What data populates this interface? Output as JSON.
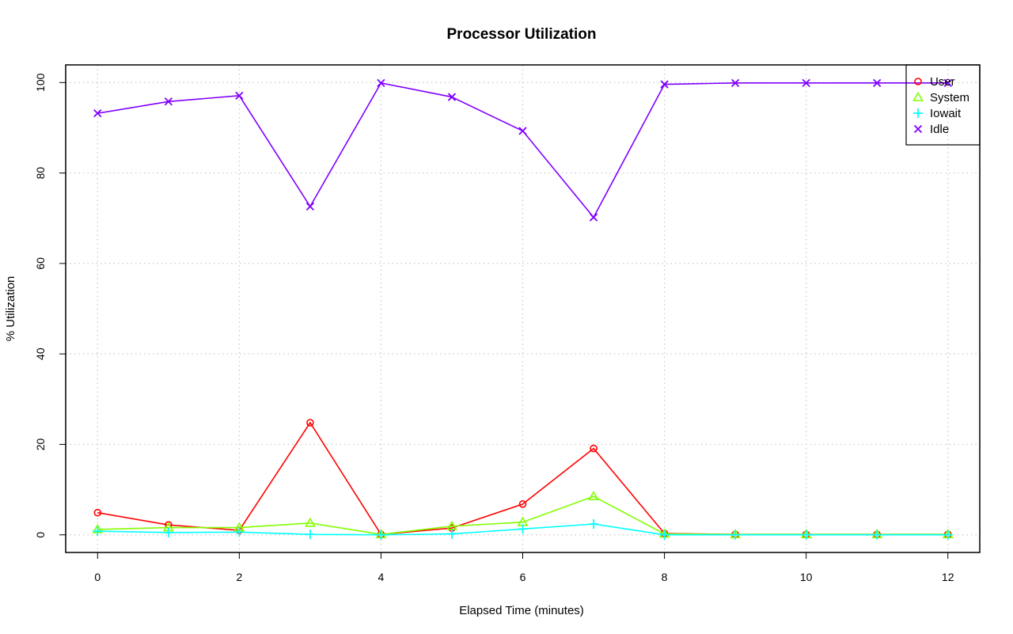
{
  "chart_data": {
    "type": "line",
    "title": "Processor Utilization",
    "xlabel": "Elapsed Time (minutes)",
    "ylabel": "% Utilization",
    "xlim": [
      -0.45,
      12.45
    ],
    "ylim": [
      -3.9,
      103.9
    ],
    "xticks": [
      0,
      2,
      4,
      6,
      8,
      10,
      12
    ],
    "yticks": [
      0,
      20,
      40,
      60,
      80,
      100
    ],
    "grid": true,
    "legend_position": "top-right",
    "x": [
      0,
      1,
      2,
      3,
      4,
      5,
      6,
      7,
      8,
      9,
      10,
      11,
      12
    ],
    "series": [
      {
        "name": "User",
        "color": "#ff0000",
        "marker": "circle",
        "values": [
          4.9,
          2.2,
          1.0,
          24.8,
          0.1,
          1.5,
          6.8,
          19.1,
          0.3,
          0.1,
          0.1,
          0.1,
          0.1
        ]
      },
      {
        "name": "System",
        "color": "#80ff00",
        "marker": "triangle",
        "values": [
          1.2,
          1.6,
          1.6,
          2.6,
          0.1,
          1.9,
          2.8,
          8.5,
          0.2,
          0.1,
          0.1,
          0.1,
          0.1
        ]
      },
      {
        "name": "Iowait",
        "color": "#00ffff",
        "marker": "plus",
        "values": [
          0.8,
          0.5,
          0.6,
          0.1,
          0.0,
          0.2,
          1.3,
          2.4,
          0.0,
          0.0,
          0.0,
          0.0,
          0.0
        ]
      },
      {
        "name": "Idle",
        "color": "#8000ff",
        "marker": "cross",
        "values": [
          93.2,
          95.8,
          97.1,
          72.6,
          99.9,
          96.8,
          89.3,
          70.2,
          99.6,
          99.9,
          99.9,
          99.9,
          99.9
        ]
      }
    ]
  }
}
